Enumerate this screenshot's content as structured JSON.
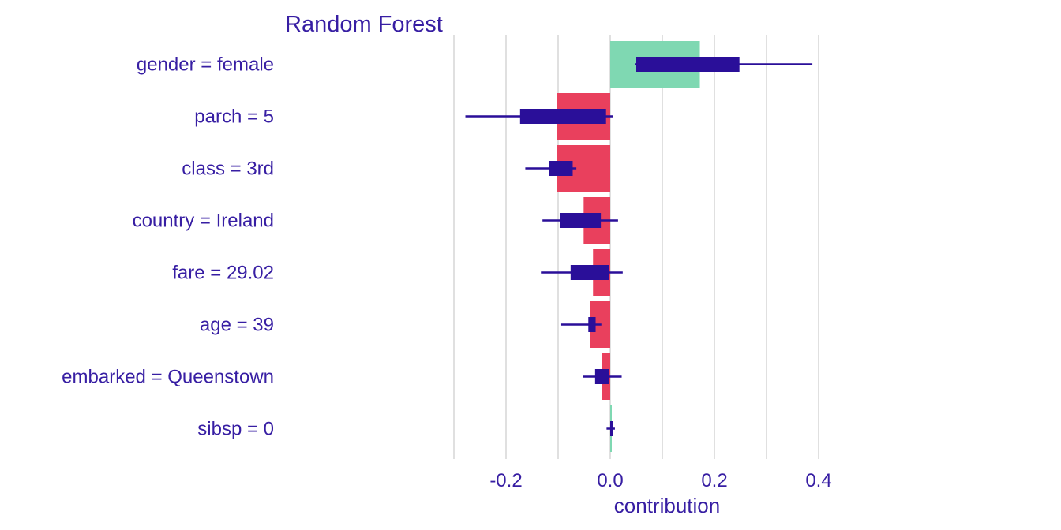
{
  "chart_data": {
    "type": "bar",
    "title": "Random Forest",
    "xlabel": "contribution",
    "ylabel": "",
    "xlim": [
      -0.3,
      0.4
    ],
    "x_ticks": [
      "-0.2",
      "0.0",
      "0.2",
      "0.4"
    ],
    "x_tick_values": [
      -0.2,
      0.0,
      0.2,
      0.4
    ],
    "grid": true,
    "categories": [
      "gender = female",
      "parch = 5",
      "class = 3rd",
      "country = Ireland",
      "fare = 29.02",
      "age = 39",
      "embarked = Queenstown",
      "sibsp = 0"
    ],
    "values": [
      0.172,
      -0.102,
      -0.102,
      -0.051,
      -0.033,
      -0.038,
      -0.016,
      0.002
    ],
    "boxes": [
      [
        0.05,
        0.248
      ],
      [
        -0.173,
        -0.008
      ],
      [
        -0.117,
        -0.072
      ],
      [
        -0.097,
        -0.018
      ],
      [
        -0.076,
        -0.003
      ],
      [
        -0.042,
        -0.028
      ],
      [
        -0.029,
        -0.003
      ],
      [
        0.0,
        0.005
      ]
    ],
    "whiskers": [
      [
        0.048,
        0.388
      ],
      [
        -0.278,
        0.005
      ],
      [
        -0.163,
        -0.065
      ],
      [
        -0.13,
        0.015
      ],
      [
        -0.133,
        0.024
      ],
      [
        -0.094,
        -0.017
      ],
      [
        -0.052,
        0.022
      ],
      [
        -0.007,
        0.009
      ]
    ],
    "colors": {
      "positive": "#7fd8b2",
      "negative": "#e9405d",
      "box": "#2a0f99",
      "text": "#371ea3",
      "grid": "#e0e0e0"
    }
  }
}
